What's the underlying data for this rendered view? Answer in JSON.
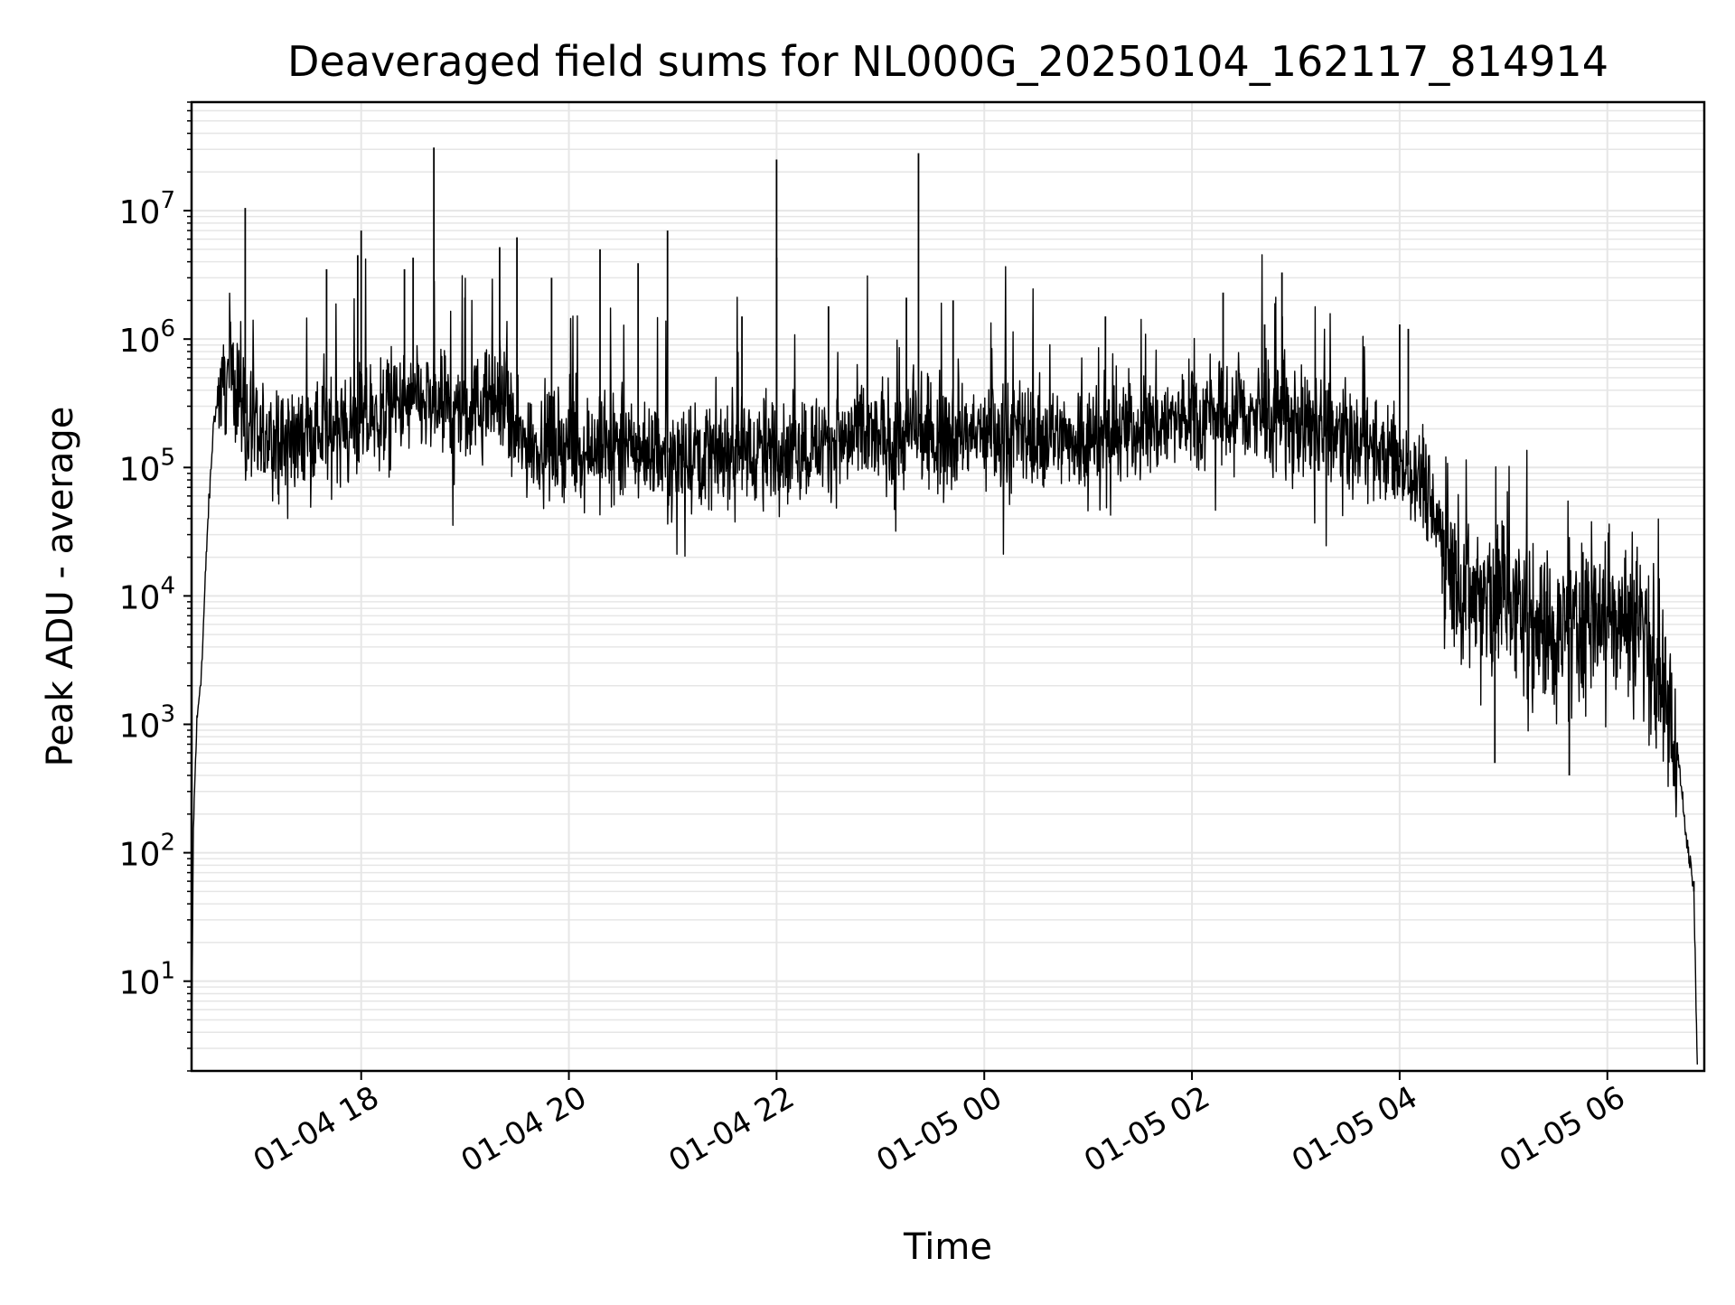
{
  "chart_data": {
    "type": "line",
    "title": "Deaveraged field sums for NL000G_20250104_162117_814914",
    "xlabel": "Time",
    "ylabel": "Peak ADU - average",
    "yscale": "log",
    "ylim": [
      2,
      70000000
    ],
    "xlim": [
      "2025-01-04 16:22",
      "2025-01-05 06:56"
    ],
    "grid": true,
    "legend": "none",
    "colors": {
      "line": "#000000",
      "grid": "#e6e6e6",
      "axes": "#000000",
      "background": "#ffffff"
    },
    "x_ticks": [
      {
        "value": "2025-01-04 18:00",
        "label": "01-04 18"
      },
      {
        "value": "2025-01-04 20:00",
        "label": "01-04 20"
      },
      {
        "value": "2025-01-04 22:00",
        "label": "01-04 22"
      },
      {
        "value": "2025-01-05 00:00",
        "label": "01-05 00"
      },
      {
        "value": "2025-01-05 02:00",
        "label": "01-05 02"
      },
      {
        "value": "2025-01-05 04:00",
        "label": "01-05 04"
      },
      {
        "value": "2025-01-05 06:00",
        "label": "01-05 06"
      }
    ],
    "y_ticks": [
      {
        "value": 10,
        "base": "10",
        "exp": "1"
      },
      {
        "value": 100,
        "base": "10",
        "exp": "2"
      },
      {
        "value": 1000,
        "base": "10",
        "exp": "3"
      },
      {
        "value": 10000,
        "base": "10",
        "exp": "4"
      },
      {
        "value": 100000,
        "base": "10",
        "exp": "5"
      },
      {
        "value": 1000000,
        "base": "10",
        "exp": "6"
      },
      {
        "value": 10000000,
        "base": "10",
        "exp": "7"
      }
    ],
    "series": [
      {
        "points": [
          [
            "2025-01-04 16:22",
            2
          ],
          [
            "2025-01-04 16:23",
            150
          ],
          [
            "2025-01-04 16:25",
            1000
          ],
          [
            "2025-01-04 16:28",
            3000
          ],
          [
            "2025-01-04 16:31",
            30000
          ],
          [
            "2025-01-04 16:35",
            250000
          ],
          [
            "2025-01-04 16:40",
            450000
          ],
          [
            "2025-01-04 16:45",
            550000
          ],
          [
            "2025-01-04 16:50",
            400000
          ],
          [
            "2025-01-04 16:55",
            200000
          ],
          [
            "2025-01-04 17:00",
            150000
          ],
          [
            "2025-01-04 17:30",
            180000
          ],
          [
            "2025-01-04 18:00",
            220000
          ],
          [
            "2025-01-04 18:30",
            320000
          ],
          [
            "2025-01-04 19:00",
            260000
          ],
          [
            "2025-01-04 19:20",
            350000
          ],
          [
            "2025-01-04 19:30",
            160000
          ],
          [
            "2025-01-04 20:00",
            150000
          ],
          [
            "2025-01-04 21:00",
            130000
          ],
          [
            "2025-01-04 22:00",
            140000
          ],
          [
            "2025-01-04 23:00",
            170000
          ],
          [
            "2025-01-05 00:00",
            180000
          ],
          [
            "2025-01-05 01:00",
            170000
          ],
          [
            "2025-01-05 02:00",
            250000
          ],
          [
            "2025-01-05 02:30",
            260000
          ],
          [
            "2025-01-05 03:00",
            220000
          ],
          [
            "2025-01-05 03:30",
            160000
          ],
          [
            "2025-01-05 04:00",
            120000
          ],
          [
            "2025-01-05 04:15",
            80000
          ],
          [
            "2025-01-05 04:30",
            15000
          ],
          [
            "2025-01-05 04:45",
            8000
          ],
          [
            "2025-01-05 05:00",
            10000
          ],
          [
            "2025-01-05 05:30",
            5000
          ],
          [
            "2025-01-05 06:00",
            8000
          ],
          [
            "2025-01-05 06:20",
            6000
          ],
          [
            "2025-01-05 06:30",
            2000
          ],
          [
            "2025-01-05 06:40",
            800
          ],
          [
            "2025-01-05 06:45",
            150
          ],
          [
            "2025-01-05 06:50",
            50
          ],
          [
            "2025-01-05 06:52",
            2
          ]
        ],
        "spikes": [
          [
            "2025-01-04 16:53",
            10500000
          ],
          [
            "2025-01-04 17:40",
            3500000
          ],
          [
            "2025-01-04 17:58",
            4500000
          ],
          [
            "2025-01-04 18:00",
            7000000
          ],
          [
            "2025-01-04 18:25",
            3500000
          ],
          [
            "2025-01-04 18:30",
            4300000
          ],
          [
            "2025-01-04 18:42",
            31000000
          ],
          [
            "2025-01-04 19:00",
            2100000
          ],
          [
            "2025-01-04 19:20",
            5200000
          ],
          [
            "2025-01-04 19:30",
            6200000
          ],
          [
            "2025-01-04 19:50",
            3000000
          ],
          [
            "2025-01-04 20:18",
            5000000
          ],
          [
            "2025-01-04 20:40",
            3900000
          ],
          [
            "2025-01-04 20:57",
            7000000
          ],
          [
            "2025-01-04 21:40",
            1500000
          ],
          [
            "2025-01-04 22:00",
            4300000
          ],
          [
            "2025-01-04 22:00",
            25000000
          ],
          [
            "2025-01-04 22:30",
            1800000
          ],
          [
            "2025-01-04 23:15",
            2100000
          ],
          [
            "2025-01-04 23:22",
            28000000
          ],
          [
            "2025-01-04 23:42",
            2000000
          ],
          [
            "2025-01-05 01:10",
            1500000
          ],
          [
            "2025-01-05 02:18",
            2300000
          ],
          [
            "2025-01-05 02:42",
            1300000
          ],
          [
            "2025-01-05 02:52",
            3300000
          ],
          [
            "2025-01-05 04:00",
            1300000
          ],
          [
            "2025-01-05 04:05",
            1200000
          ],
          [
            "2025-01-05 04:55",
            500
          ],
          [
            "2025-01-05 05:38",
            400
          ],
          [
            "2025-01-05 06:50",
            60
          ]
        ]
      }
    ]
  }
}
